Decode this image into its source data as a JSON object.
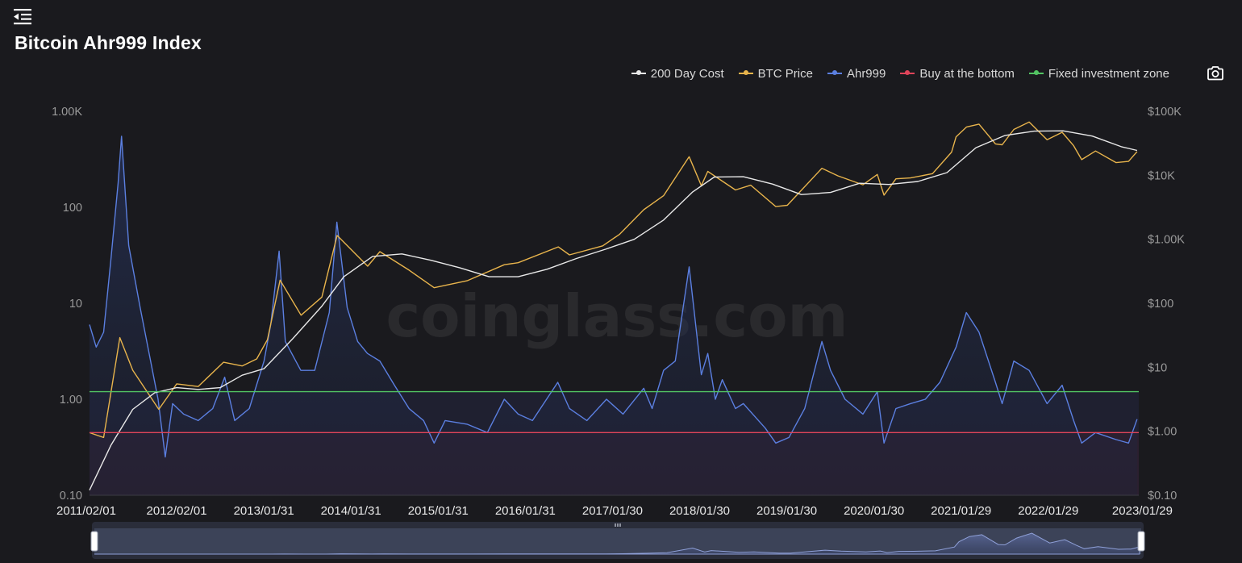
{
  "page": {
    "title": "Bitcoin Ahr999 Index",
    "menu_icon": "collapse-menu-icon",
    "camera_icon": "camera-icon",
    "watermark": "coinglass.com"
  },
  "legend": [
    {
      "label": "200 Day Cost",
      "color": "#e8e8e8"
    },
    {
      "label": "BTC Price",
      "color": "#e8b44c"
    },
    {
      "label": "Ahr999",
      "color": "#5b7fe0"
    },
    {
      "label": "Buy at the bottom",
      "color": "#e0445a"
    },
    {
      "label": "Fixed investment zone",
      "color": "#52c463"
    }
  ],
  "chart_data": {
    "type": "line",
    "title": "Bitcoin Ahr999 Index",
    "left_axis": {
      "scale": "log",
      "range": [
        0.1,
        1000
      ],
      "ticks": [
        0.1,
        1,
        10,
        100,
        1000
      ],
      "tick_labels": [
        "0.10",
        "1.00",
        "10",
        "100",
        "1.00K"
      ]
    },
    "right_axis": {
      "scale": "log",
      "range": [
        0.1,
        100000
      ],
      "ticks": [
        0.1,
        1,
        10,
        100,
        1000,
        10000,
        100000
      ],
      "tick_labels": [
        "$0.10",
        "$1.00",
        "$10",
        "$100",
        "$1.00K",
        "$10K",
        "$100K"
      ]
    },
    "x_range": [
      "2011-02-01",
      "2023-02-12"
    ],
    "x_tick_labels": [
      "2011/02/01",
      "2012/02/01",
      "2013/01/31",
      "2014/01/31",
      "2015/01/31",
      "2016/01/31",
      "2017/01/30",
      "2018/01/30",
      "2019/01/30",
      "2020/01/30",
      "2021/01/29",
      "2022/01/29",
      "2023/01/29"
    ],
    "x_tick_dates": [
      "2011-02-01",
      "2012-02-01",
      "2013-01-31",
      "2014-01-31",
      "2015-01-31",
      "2016-01-31",
      "2017-01-30",
      "2018-01-30",
      "2019-01-30",
      "2020-01-30",
      "2021-01-29",
      "2022-01-29",
      "2023-01-29"
    ],
    "reference_lines": [
      {
        "name": "Fixed investment zone",
        "value": 1.2,
        "axis": "left",
        "color": "#52c463"
      },
      {
        "name": "Buy at the bottom",
        "value": 0.45,
        "axis": "left",
        "color": "#e0445a"
      }
    ],
    "series": [
      {
        "name": "Ahr999",
        "axis": "left",
        "color": "#5b7fe0",
        "area": true,
        "x": [
          "2011-02-01",
          "2011-03-01",
          "2011-04-01",
          "2011-05-01",
          "2011-06-01",
          "2011-06-15",
          "2011-07-15",
          "2011-09-01",
          "2011-11-15",
          "2011-12-15",
          "2012-01-15",
          "2012-03-01",
          "2012-05-01",
          "2012-07-01",
          "2012-08-20",
          "2012-10-01",
          "2012-12-01",
          "2013-02-01",
          "2013-03-01",
          "2013-04-05",
          "2013-05-01",
          "2013-07-05",
          "2013-09-01",
          "2013-11-01",
          "2013-12-03",
          "2014-01-15",
          "2014-02-28",
          "2014-04-10",
          "2014-06-01",
          "2014-08-01",
          "2014-10-01",
          "2014-12-01",
          "2015-01-14",
          "2015-03-01",
          "2015-06-01",
          "2015-08-25",
          "2015-11-04",
          "2016-01-01",
          "2016-03-01",
          "2016-06-15",
          "2016-08-03",
          "2016-10-15",
          "2017-01-05",
          "2017-03-15",
          "2017-06-10",
          "2017-07-15",
          "2017-09-01",
          "2017-10-20",
          "2017-12-17",
          "2018-02-06",
          "2018-03-05",
          "2018-04-06",
          "2018-05-05",
          "2018-06-29",
          "2018-08-01",
          "2018-11-01",
          "2018-12-15",
          "2019-02-08",
          "2019-04-15",
          "2019-06-26",
          "2019-08-01",
          "2019-10-01",
          "2019-12-15",
          "2020-02-13",
          "2020-03-12",
          "2020-05-01",
          "2020-07-01",
          "2020-09-01",
          "2020-11-01",
          "2021-01-08",
          "2021-02-20",
          "2021-04-14",
          "2021-06-22",
          "2021-07-20",
          "2021-09-07",
          "2021-11-10",
          "2022-01-24",
          "2022-03-28",
          "2022-05-15",
          "2022-06-18",
          "2022-08-15",
          "2022-11-09",
          "2022-12-31",
          "2023-02-05"
        ],
        "y": [
          6,
          3.5,
          5,
          28,
          180,
          550,
          40,
          9,
          1.0,
          0.25,
          0.9,
          0.7,
          0.6,
          0.8,
          1.7,
          0.6,
          0.8,
          2.5,
          6,
          35,
          4,
          2.0,
          2.0,
          8,
          70,
          9,
          4,
          3,
          2.5,
          1.4,
          0.8,
          0.6,
          0.35,
          0.6,
          0.55,
          0.45,
          1.0,
          0.7,
          0.6,
          1.5,
          0.8,
          0.6,
          1.0,
          0.7,
          1.3,
          0.8,
          2.0,
          2.5,
          24,
          1.8,
          3,
          1.0,
          1.6,
          0.8,
          0.9,
          0.5,
          0.35,
          0.4,
          0.8,
          4,
          2,
          1.0,
          0.7,
          1.2,
          0.35,
          0.8,
          0.9,
          1.0,
          1.5,
          3.5,
          8,
          5,
          1.5,
          0.9,
          2.5,
          2,
          0.9,
          1.4,
          0.6,
          0.35,
          0.45,
          0.38,
          0.35,
          0.62
        ]
      },
      {
        "name": "BTC Price",
        "axis": "right",
        "color": "#e8b44c",
        "x": [
          "2011-02-01",
          "2011-04-01",
          "2011-06-08",
          "2011-08-01",
          "2011-11-18",
          "2012-02-01",
          "2012-05-01",
          "2012-08-15",
          "2012-11-01",
          "2013-01-01",
          "2013-02-15",
          "2013-04-09",
          "2013-07-06",
          "2013-10-01",
          "2013-12-04",
          "2014-04-11",
          "2014-06-01",
          "2014-10-01",
          "2015-01-14",
          "2015-06-01",
          "2015-11-04",
          "2016-01-01",
          "2016-06-17",
          "2016-08-03",
          "2016-12-20",
          "2017-03-01",
          "2017-06-10",
          "2017-09-01",
          "2017-12-17",
          "2018-02-06",
          "2018-03-05",
          "2018-06-29",
          "2018-09-01",
          "2018-12-15",
          "2019-02-01",
          "2019-06-26",
          "2019-09-01",
          "2019-12-15",
          "2020-02-13",
          "2020-03-12",
          "2020-05-01",
          "2020-07-01",
          "2020-10-01",
          "2020-12-20",
          "2021-01-08",
          "2021-02-21",
          "2021-04-14",
          "2021-06-22",
          "2021-07-20",
          "2021-09-07",
          "2021-11-10",
          "2022-01-24",
          "2022-03-28",
          "2022-05-15",
          "2022-06-18",
          "2022-08-15",
          "2022-11-09",
          "2022-12-31",
          "2023-02-05"
        ],
        "y": [
          0.95,
          0.8,
          29,
          9,
          2.2,
          5.5,
          5,
          12,
          10.5,
          13.5,
          27,
          230,
          65,
          125,
          1150,
          380,
          640,
          330,
          175,
          225,
          400,
          430,
          760,
          570,
          790,
          1200,
          2900,
          4800,
          19500,
          6900,
          11500,
          5900,
          7000,
          3250,
          3400,
          12900,
          9800,
          7100,
          10300,
          4900,
          8800,
          9100,
          10600,
          23000,
          40000,
          57000,
          63000,
          31000,
          30000,
          52000,
          68000,
          36000,
          47000,
          29000,
          17600,
          24000,
          15800,
          16500,
          23500
        ]
      },
      {
        "name": "200 Day Cost",
        "axis": "right",
        "color": "#e8e8e8",
        "x": [
          "2011-02-01",
          "2011-05-01",
          "2011-08-01",
          "2011-11-01",
          "2012-02-01",
          "2012-05-01",
          "2012-08-01",
          "2012-11-01",
          "2013-02-01",
          "2013-06-01",
          "2013-10-01",
          "2014-01-01",
          "2014-05-01",
          "2014-09-01",
          "2015-01-01",
          "2015-05-01",
          "2015-09-01",
          "2016-01-01",
          "2016-05-01",
          "2016-09-01",
          "2017-01-01",
          "2017-05-01",
          "2017-09-01",
          "2018-01-01",
          "2018-04-01",
          "2018-08-01",
          "2018-12-01",
          "2019-04-01",
          "2019-08-01",
          "2019-12-01",
          "2020-04-01",
          "2020-08-01",
          "2020-12-01",
          "2021-04-01",
          "2021-08-01",
          "2021-12-01",
          "2022-04-01",
          "2022-08-01",
          "2022-12-01",
          "2023-02-05"
        ],
        "y": [
          0.12,
          0.6,
          2.2,
          4.0,
          4.8,
          4.5,
          4.8,
          7.5,
          9.5,
          28,
          90,
          260,
          540,
          590,
          470,
          360,
          260,
          260,
          340,
          500,
          700,
          1000,
          2000,
          5500,
          9400,
          9500,
          7300,
          5000,
          5400,
          7500,
          7200,
          8000,
          11000,
          27000,
          42000,
          49000,
          49500,
          41000,
          28000,
          24500
        ]
      }
    ],
    "navigator": {
      "range": [
        "2011-02-01",
        "2023-02-05"
      ]
    }
  }
}
